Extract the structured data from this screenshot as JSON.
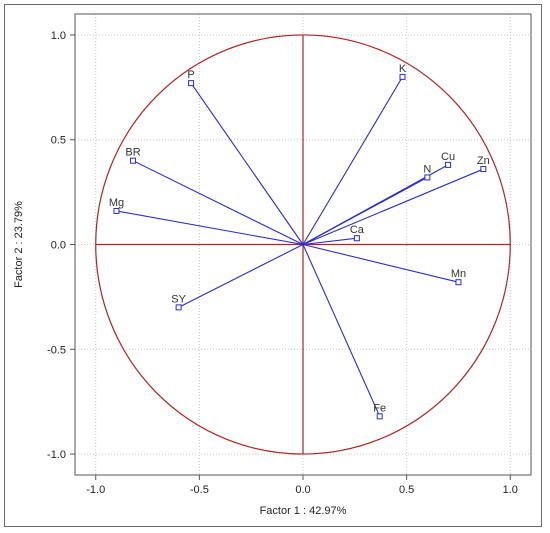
{
  "chart_data": {
    "type": "scatter",
    "title": "",
    "xlabel": "Factor 1 : 42.97%",
    "ylabel": "Factor 2 : 23.79%",
    "xlim": [
      -1.1,
      1.1
    ],
    "ylim": [
      -1.1,
      1.1
    ],
    "x_ticks": [
      "-1.0",
      "-0.5",
      "0.0",
      "0.5",
      "1.0"
    ],
    "y_ticks": [
      "1.0",
      "0.5",
      "0.0",
      "-0.5",
      "-1.0"
    ],
    "grid": true,
    "unit_circle": true,
    "points": [
      {
        "label": "P",
        "x": -0.54,
        "y": 0.77
      },
      {
        "label": "K",
        "x": 0.48,
        "y": 0.8
      },
      {
        "label": "BR",
        "x": -0.82,
        "y": 0.4
      },
      {
        "label": "Cu",
        "x": 0.7,
        "y": 0.38
      },
      {
        "label": "N",
        "x": 0.6,
        "y": 0.32
      },
      {
        "label": "Zn",
        "x": 0.87,
        "y": 0.36
      },
      {
        "label": "Mg",
        "x": -0.9,
        "y": 0.16
      },
      {
        "label": "Ca",
        "x": 0.26,
        "y": 0.03
      },
      {
        "label": "Mn",
        "x": 0.75,
        "y": -0.18
      },
      {
        "label": "SY",
        "x": -0.6,
        "y": -0.3
      },
      {
        "label": "Fe",
        "x": 0.37,
        "y": -0.82
      }
    ],
    "colors": {
      "vector": "#2a2ad0",
      "circle": "#b22222",
      "axes_cross": "#b22222",
      "grid": "#c8c8c8"
    }
  }
}
